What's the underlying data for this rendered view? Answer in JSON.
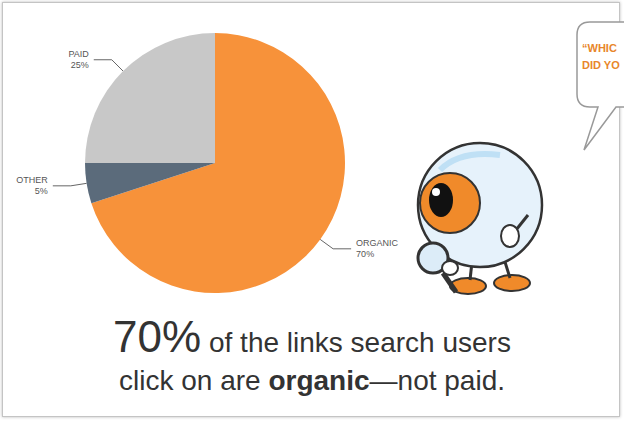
{
  "chart_data": {
    "type": "pie",
    "categories": [
      "ORGANIC",
      "OTHER",
      "PAID"
    ],
    "values": [
      70,
      5,
      25
    ],
    "value_labels": [
      "70%",
      "5%",
      "25%"
    ],
    "colors": [
      "#f7923a",
      "#5b6b7b",
      "#c8c8c8"
    ],
    "data_labels": true,
    "annotations": {
      "caption": [
        [
          "70%",
          " of the links search users"
        ],
        [
          "click on are ",
          "organic",
          "—not paid."
        ]
      ],
      "speech_bubble": [
        "“WHIC",
        "DID YO"
      ]
    }
  }
}
